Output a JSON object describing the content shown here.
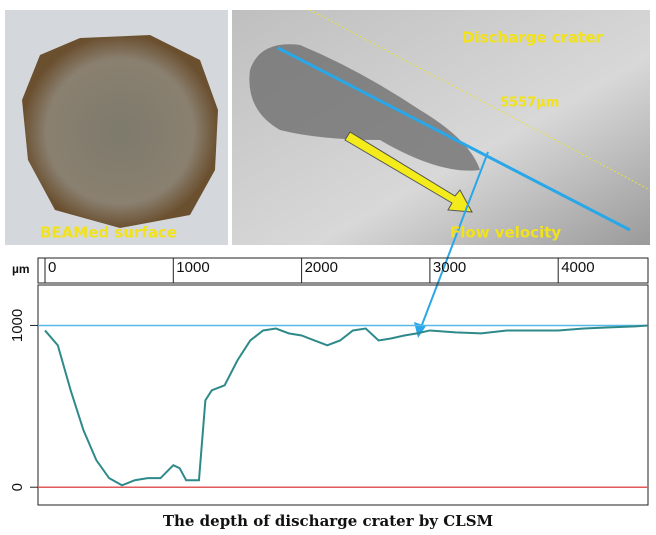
{
  "chart_data": {
    "type": "line",
    "title": "The depth of discharge crater by CLSM",
    "photo_labels": [
      "BEAMed surface",
      "Discharge crater",
      "5557µm",
      "Flow velocity"
    ],
    "xlabel": "µm",
    "x": [
      0,
      100,
      200,
      300,
      400,
      500,
      600,
      700,
      800,
      900,
      1000,
      1050,
      1100,
      1200,
      1250,
      1300,
      1400,
      1500,
      1600,
      1700,
      1800,
      1900,
      2000,
      2100,
      2200,
      2300,
      2400,
      2500,
      2600,
      2700,
      2800,
      2900,
      3000,
      3200,
      3400,
      3600,
      3800,
      4000,
      4200,
      4400,
      4600,
      4700
    ],
    "series": [
      {
        "color": "#2e8a8a",
        "values": [
          969,
          877,
          599,
          352,
          167,
          56,
          12,
          43,
          56,
          56,
          136,
          117,
          43,
          43,
          537,
          599,
          630,
          784,
          907,
          969,
          981,
          951,
          938,
          907,
          877,
          907,
          969,
          981,
          907,
          920,
          938,
          951,
          969,
          957,
          951,
          969,
          969,
          969,
          981,
          988,
          994,
          1000
        ]
      }
    ],
    "xlim": [
      0,
      4700
    ],
    "xticks": [
      0,
      1000,
      2000,
      3000,
      4000
    ],
    "ylim": [
      -110,
      1250
    ],
    "yticks": [
      0,
      1000
    ],
    "hlines": [
      {
        "value": 1000,
        "color": "#55b8e6"
      },
      {
        "value": 0,
        "color": "#e05a5a"
      }
    ]
  }
}
